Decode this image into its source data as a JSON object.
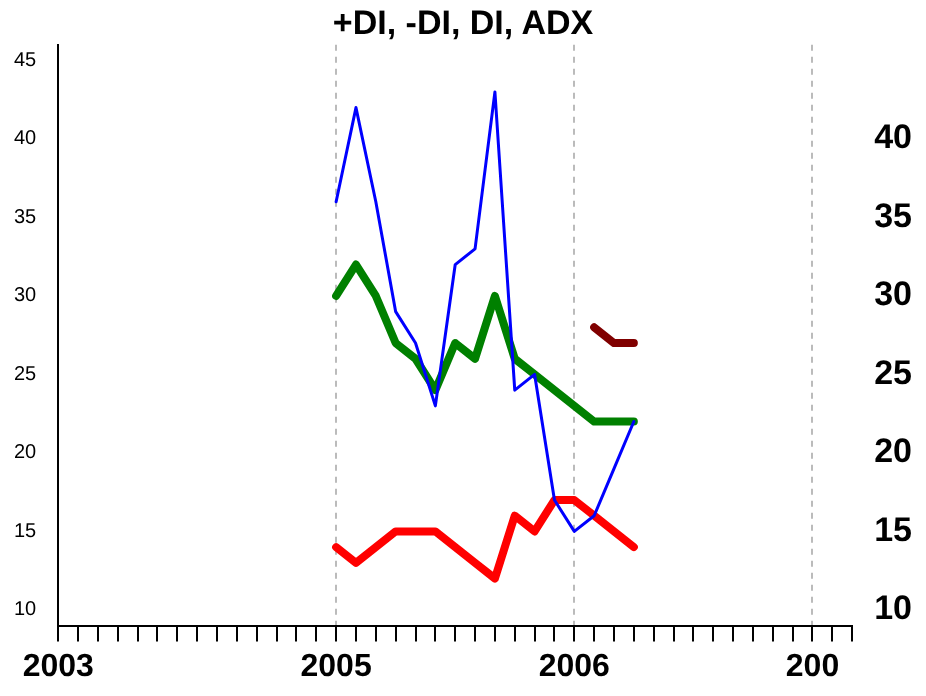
{
  "chart_data": {
    "type": "line",
    "title": "+DI, -DI, DI, ADX",
    "categories": [
      "2003",
      null,
      null,
      null,
      null,
      null,
      null,
      null,
      null,
      null,
      null,
      null,
      null,
      null,
      "2005",
      null,
      null,
      null,
      null,
      null,
      null,
      null,
      null,
      null,
      null,
      null,
      "2006",
      null,
      null,
      null,
      null,
      null,
      null,
      null,
      null,
      null,
      null,
      null,
      "200",
      null,
      null
    ],
    "series": [
      {
        "color": "#0000ff",
        "values": [
          null,
          null,
          null,
          null,
          null,
          null,
          null,
          null,
          null,
          null,
          null,
          null,
          null,
          null,
          36,
          42,
          36,
          29,
          27,
          23,
          32,
          33,
          43,
          24,
          25,
          17,
          15,
          16,
          19,
          22,
          null,
          null,
          null,
          null,
          null,
          null,
          null,
          null,
          null,
          null,
          null
        ]
      },
      {
        "color": "#008000",
        "values": [
          null,
          null,
          null,
          null,
          null,
          null,
          null,
          null,
          null,
          null,
          null,
          null,
          null,
          null,
          30,
          32,
          30,
          27,
          26,
          24,
          27,
          26,
          30,
          26,
          25,
          24,
          23,
          22,
          22,
          22,
          null,
          null,
          null,
          null,
          null,
          null,
          null,
          null,
          null,
          null,
          null
        ]
      },
      {
        "color": "#ff0000",
        "values": [
          null,
          null,
          null,
          null,
          null,
          null,
          null,
          null,
          null,
          null,
          null,
          null,
          null,
          null,
          14,
          13,
          14,
          15,
          15,
          15,
          14,
          13,
          12,
          16,
          15,
          17,
          17,
          16,
          15,
          14,
          null,
          null,
          null,
          null,
          null,
          null,
          null,
          null,
          null,
          null,
          null
        ]
      },
      {
        "color": "#800000",
        "values": [
          null,
          null,
          null,
          null,
          null,
          null,
          null,
          null,
          null,
          null,
          null,
          null,
          null,
          null,
          null,
          null,
          null,
          null,
          null,
          null,
          null,
          null,
          null,
          null,
          null,
          null,
          null,
          28,
          27,
          27,
          null,
          null,
          null,
          null,
          null,
          null,
          null,
          null,
          null,
          null,
          null
        ]
      }
    ],
    "ylim": [
      9,
      46
    ],
    "yticks": [
      10,
      15,
      20,
      25,
      30,
      35,
      40,
      45
    ],
    "y2lim": [
      9,
      46
    ],
    "y2ticks": [
      10,
      15,
      20,
      25,
      30,
      35,
      40
    ],
    "grid": "x",
    "legend": false,
    "marker": "none",
    "line_style": "solid"
  }
}
